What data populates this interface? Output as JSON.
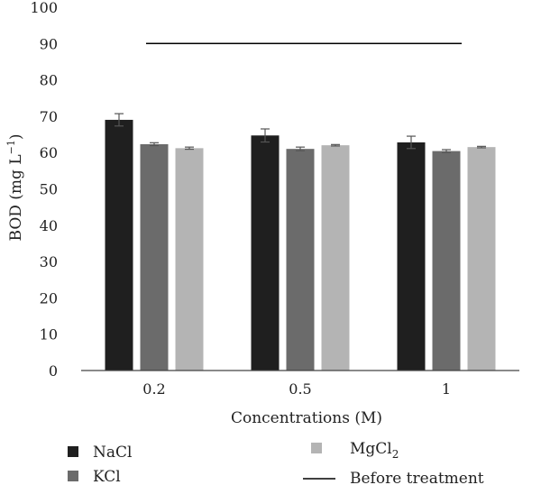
{
  "chart_data": {
    "type": "bar",
    "title": "",
    "xlabel": "Concentrations (M)",
    "ylabel": {
      "main": "BOD (mg L",
      "sup": "−1",
      "close": ")"
    },
    "ylim": [
      0,
      100
    ],
    "yticks": [
      0,
      10,
      20,
      30,
      40,
      50,
      60,
      70,
      80,
      90,
      100
    ],
    "categories": [
      "0.2",
      "0.5",
      "1"
    ],
    "grid": false,
    "legend_position": "bottom",
    "series": [
      {
        "name": "NaCl",
        "color": "#1f1f1f",
        "values": [
          69,
          64.7,
          62.8
        ],
        "errors": [
          1.7,
          1.8,
          1.7
        ]
      },
      {
        "name": "KCl",
        "color": "#6b6b6b",
        "values": [
          62.3,
          61,
          60.4
        ],
        "errors": [
          0.4,
          0.5,
          0.4
        ]
      },
      {
        "name": "MgCl",
        "name_sub": "2",
        "color": "#b4b4b4",
        "values": [
          61.2,
          62,
          61.5
        ],
        "errors": [
          0.3,
          0.2,
          0.2
        ]
      }
    ],
    "reference_line": {
      "name": "Before treatment",
      "value": 90,
      "color": "#000000"
    }
  }
}
